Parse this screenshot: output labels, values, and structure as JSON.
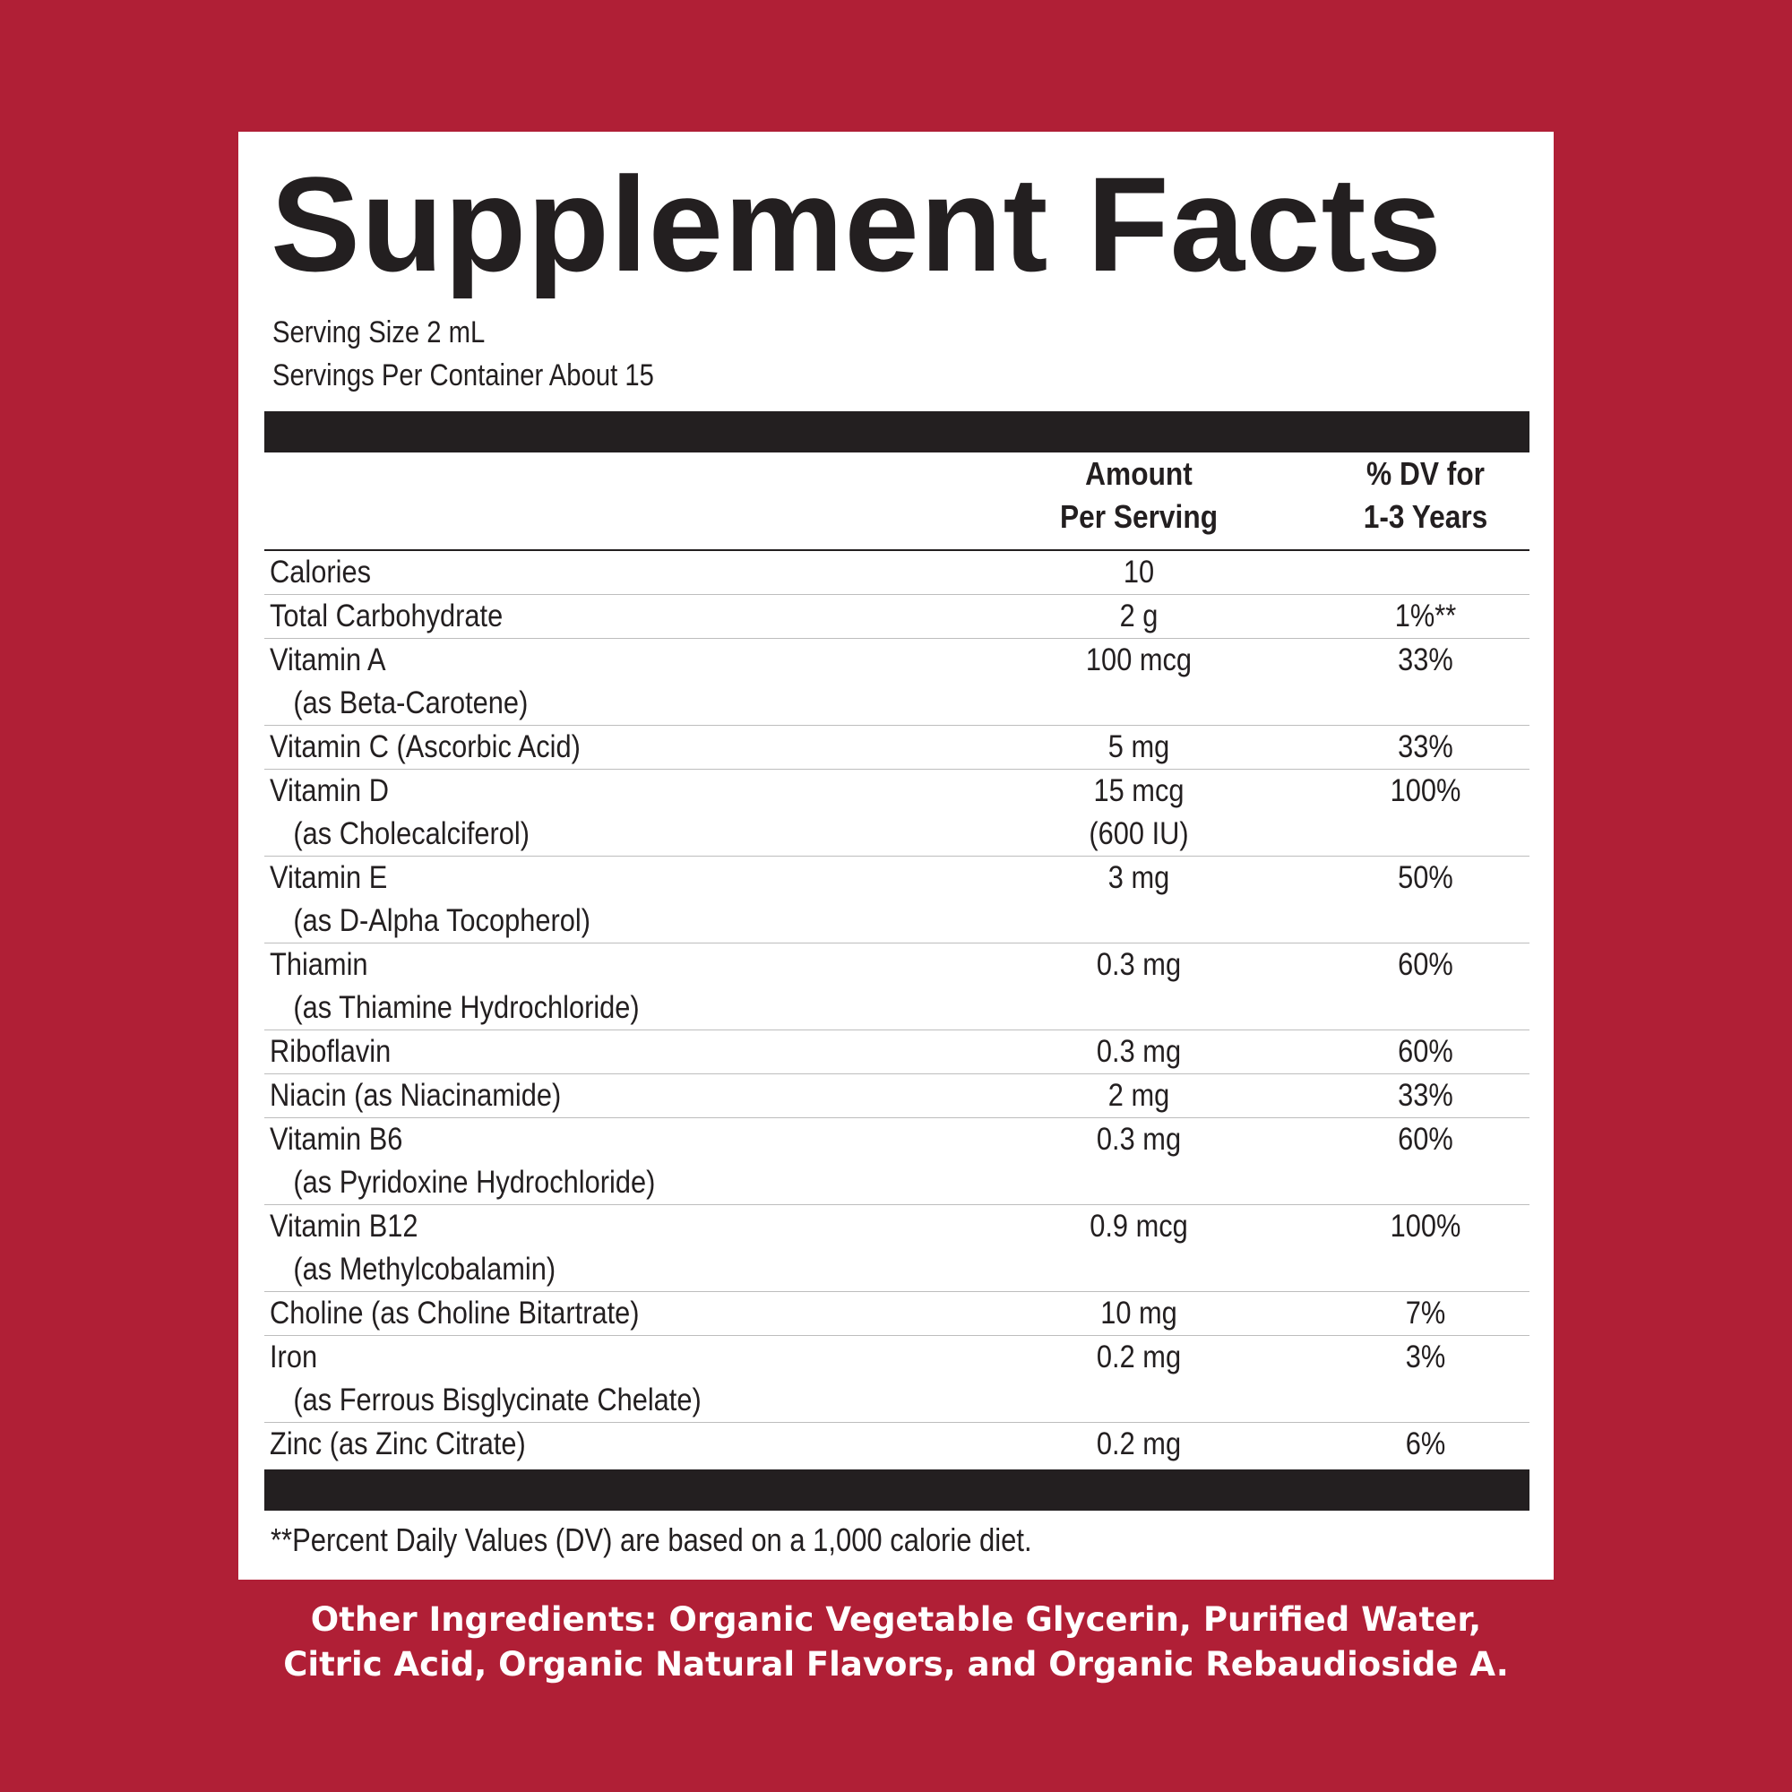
{
  "colors": {
    "background": "#b01f36",
    "panel": "#ffffff",
    "text": "#231f20",
    "ingredients_text": "#ffffff"
  },
  "label": {
    "title": "Supplement Facts",
    "serving_size": "Serving Size 2 mL",
    "servings_per_container": "Servings Per Container About 15",
    "columns": {
      "amount_line1": "Amount",
      "amount_line2": "Per Serving",
      "dv_line1": "% DV for",
      "dv_line2": "1-3 Years"
    },
    "rows": [
      {
        "name": "Calories",
        "sub": "",
        "amount": "10",
        "amount_sub": "",
        "dv": ""
      },
      {
        "name": "Total Carbohydrate",
        "sub": "",
        "amount": "2 g",
        "amount_sub": "",
        "dv": "1%**"
      },
      {
        "name": "Vitamin A",
        "sub": "(as Beta-Carotene)",
        "amount": "100 mcg",
        "amount_sub": "",
        "dv": "33%"
      },
      {
        "name": "Vitamin C (Ascorbic Acid)",
        "sub": "",
        "amount": "5 mg",
        "amount_sub": "",
        "dv": "33%"
      },
      {
        "name": "Vitamin D",
        "sub": "(as Cholecalciferol)",
        "amount": "15 mcg",
        "amount_sub": "(600 IU)",
        "dv": "100%"
      },
      {
        "name": "Vitamin E",
        "sub": "(as D-Alpha Tocopherol)",
        "amount": "3 mg",
        "amount_sub": "",
        "dv": "50%"
      },
      {
        "name": "Thiamin",
        "sub": "(as Thiamine Hydrochloride)",
        "amount": "0.3 mg",
        "amount_sub": "",
        "dv": "60%"
      },
      {
        "name": "Riboflavin",
        "sub": "",
        "amount": "0.3 mg",
        "amount_sub": "",
        "dv": "60%"
      },
      {
        "name": "Niacin (as Niacinamide)",
        "sub": "",
        "amount": "2 mg",
        "amount_sub": "",
        "dv": "33%"
      },
      {
        "name": "Vitamin B6",
        "sub": "(as Pyridoxine Hydrochloride)",
        "amount": "0.3 mg",
        "amount_sub": "",
        "dv": "60%"
      },
      {
        "name": "Vitamin B12",
        "sub": "(as Methylcobalamin)",
        "amount": "0.9 mcg",
        "amount_sub": "",
        "dv": "100%"
      },
      {
        "name": "Choline (as Choline Bitartrate)",
        "sub": "",
        "amount": "10 mg",
        "amount_sub": "",
        "dv": "7%"
      },
      {
        "name": "Iron",
        "sub": "(as Ferrous Bisglycinate Chelate)",
        "amount": "0.2 mg",
        "amount_sub": "",
        "dv": "3%"
      },
      {
        "name": "Zinc (as Zinc Citrate)",
        "sub": "",
        "amount": "0.2 mg",
        "amount_sub": "",
        "dv": "6%"
      }
    ],
    "footnote": "**Percent Daily Values (DV) are based on a 1,000 calorie diet."
  },
  "other_ingredients": {
    "line1": "Other Ingredients: Organic Vegetable Glycerin, Purified Water,",
    "line2": "Citric Acid, Organic Natural Flavors, and Organic Rebaudioside A."
  }
}
